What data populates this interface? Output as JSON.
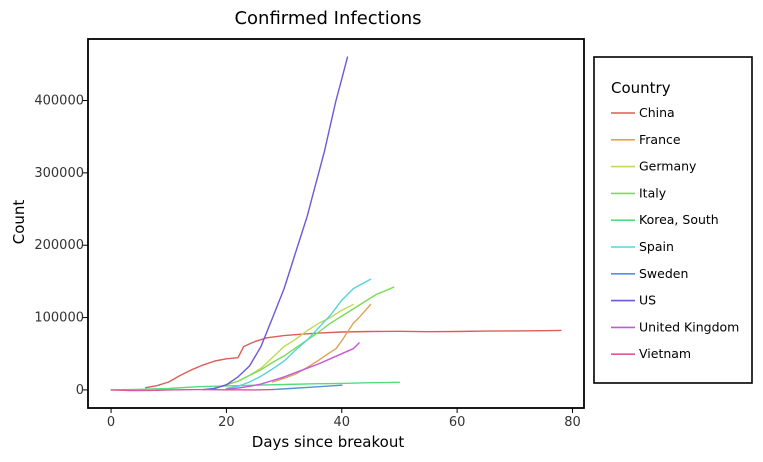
{
  "chart_data": {
    "type": "line",
    "title": "Confirmed Infections",
    "xlabel": "Days since breakout",
    "ylabel": "Count",
    "xlim": [
      -4,
      82
    ],
    "ylim": [
      -25000,
      485000
    ],
    "xticks": [
      0,
      20,
      40,
      60,
      80
    ],
    "yticks": [
      0,
      100000,
      200000,
      300000,
      400000
    ],
    "grid": false,
    "legend": {
      "title": "Country",
      "placement": "outside-right"
    },
    "series": [
      {
        "name": "China",
        "color": "#db5f57",
        "x": [
          6,
          8,
          10,
          12,
          14,
          16,
          18,
          20,
          22,
          23,
          25,
          27,
          30,
          33,
          36,
          40,
          45,
          50,
          55,
          60,
          65,
          70,
          75,
          78
        ],
        "y": [
          3000,
          6000,
          11000,
          20000,
          28000,
          34500,
          40000,
          43000,
          44500,
          60000,
          67000,
          72000,
          75000,
          77000,
          78500,
          80000,
          80800,
          81000,
          80500,
          80700,
          81300,
          81600,
          81900,
          82300
        ]
      },
      {
        "name": "France",
        "color": "#dba457",
        "x": [
          28,
          30,
          32,
          34,
          36,
          38,
          39,
          40,
          42,
          43,
          45
        ],
        "y": [
          11000,
          16000,
          22000,
          31000,
          41000,
          52000,
          57000,
          68000,
          92000,
          100000,
          118000
        ]
      },
      {
        "name": "Germany",
        "color": "#c1db57",
        "x": [
          22,
          24,
          26,
          28,
          30,
          32,
          34,
          36,
          38,
          40,
          42
        ],
        "y": [
          12000,
          20000,
          30000,
          45000,
          60000,
          70000,
          82000,
          92000,
          100000,
          110000,
          118000
        ]
      },
      {
        "name": "Italy",
        "color": "#7cdb57",
        "x": [
          18,
          20,
          22,
          24,
          26,
          28,
          30,
          32,
          34,
          36,
          38,
          40,
          42,
          44,
          46,
          49
        ],
        "y": [
          3000,
          7000,
          12000,
          20000,
          28000,
          38000,
          47000,
          58000,
          69000,
          80000,
          92000,
          102000,
          112000,
          122000,
          132000,
          142000
        ]
      },
      {
        "name": "Korea, South",
        "color": "#57db80",
        "x": [
          0,
          5,
          10,
          15,
          20,
          25,
          30,
          35,
          40,
          45,
          50
        ],
        "y": [
          0,
          800,
          2000,
          4500,
          5500,
          6500,
          7500,
          8500,
          9000,
          10000,
          10500
        ]
      },
      {
        "name": "Spain",
        "color": "#57d3db",
        "x": [
          20,
          22,
          24,
          26,
          28,
          30,
          32,
          34,
          36,
          38,
          40,
          42,
          45
        ],
        "y": [
          2000,
          5000,
          11000,
          19000,
          29000,
          40000,
          55000,
          69000,
          86000,
          103000,
          124000,
          140000,
          153000
        ]
      },
      {
        "name": "Sweden",
        "color": "#578fdb",
        "x": [
          28,
          31,
          34,
          37,
          40
        ],
        "y": [
          500,
          2000,
          3500,
          5000,
          6500
        ]
      },
      {
        "name": "US",
        "color": "#6e57db",
        "x": [
          16,
          18,
          20,
          22,
          24,
          26,
          28,
          30,
          31,
          32,
          33,
          34,
          35,
          36,
          37,
          38,
          39,
          40,
          41
        ],
        "y": [
          500,
          2000,
          7000,
          18000,
          33000,
          60000,
          100000,
          140000,
          165000,
          190000,
          215000,
          240000,
          270000,
          300000,
          330000,
          365000,
          400000,
          430000,
          460000
        ]
      },
      {
        "name": "United Kingdom",
        "color": "#c557db",
        "x": [
          20,
          22,
          24,
          26,
          28,
          30,
          32,
          34,
          36,
          38,
          40,
          42,
          43
        ],
        "y": [
          1000,
          2500,
          5000,
          8000,
          13000,
          18000,
          24000,
          30000,
          36000,
          43000,
          50000,
          57000,
          65000
        ]
      },
      {
        "name": "Vietnam",
        "color": "#db5797",
        "x": [
          0,
          3,
          5,
          8,
          10,
          15,
          20,
          25,
          28
        ],
        "y": [
          0,
          -800,
          -1000,
          -600,
          0,
          500,
          200,
          0,
          400
        ]
      }
    ]
  }
}
